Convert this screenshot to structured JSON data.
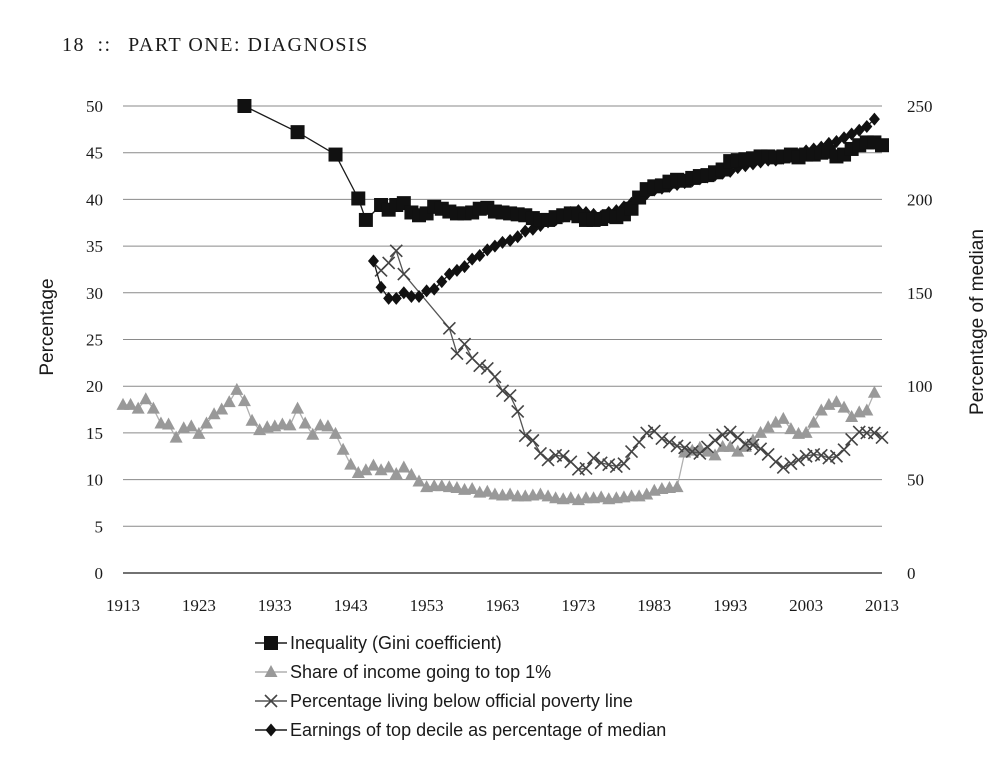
{
  "page_header": {
    "page_number": "18",
    "separator": "::",
    "section": "PART ONE: DIAGNOSIS"
  },
  "chart_data": {
    "type": "line",
    "title": "",
    "xlabel": "",
    "ylabel": "Percentage",
    "ylabel_right": "Percentage of median",
    "xlim": [
      1913,
      2013
    ],
    "ylim": [
      0,
      50
    ],
    "ylim_right": [
      0,
      250
    ],
    "x_ticks": [
      "1913",
      "1923",
      "1933",
      "1943",
      "1953",
      "1963",
      "1973",
      "1983",
      "1993",
      "2003",
      "2013"
    ],
    "y_ticks": [
      "0",
      "5",
      "10",
      "15",
      "20",
      "25",
      "30",
      "35",
      "40",
      "45",
      "50"
    ],
    "y_ticks_right": [
      "0",
      "50",
      "100",
      "150",
      "200",
      "250"
    ],
    "grid": true,
    "legend_position": "bottom",
    "series": [
      {
        "name": "Inequality (Gini coefficient)",
        "axis": "left",
        "marker": "square",
        "color": "#111111",
        "points": [
          [
            1929,
            50
          ],
          [
            1936,
            47.2
          ],
          [
            1941,
            44.8
          ],
          [
            1944,
            40.1
          ],
          [
            1945,
            37.8
          ],
          [
            1947,
            39.4
          ],
          [
            1948,
            38.9
          ],
          [
            1949,
            39.4
          ],
          [
            1950,
            39.6
          ],
          [
            1951,
            38.6
          ],
          [
            1952,
            38.3
          ],
          [
            1953,
            38.5
          ],
          [
            1954,
            39.2
          ],
          [
            1955,
            39.0
          ],
          [
            1956,
            38.7
          ],
          [
            1957,
            38.5
          ],
          [
            1958,
            38.5
          ],
          [
            1959,
            38.6
          ],
          [
            1960,
            39.0
          ],
          [
            1961,
            39.1
          ],
          [
            1962,
            38.7
          ],
          [
            1963,
            38.6
          ],
          [
            1964,
            38.5
          ],
          [
            1965,
            38.4
          ],
          [
            1966,
            38.3
          ],
          [
            1967,
            38.0
          ],
          [
            1968,
            37.8
          ],
          [
            1969,
            37.8
          ],
          [
            1970,
            38.1
          ],
          [
            1971,
            38.3
          ],
          [
            1972,
            38.5
          ],
          [
            1973,
            38.2
          ],
          [
            1974,
            37.8
          ],
          [
            1975,
            37.8
          ],
          [
            1976,
            37.9
          ],
          [
            1977,
            38.2
          ],
          [
            1978,
            38.1
          ],
          [
            1979,
            38.4
          ],
          [
            1980,
            39.0
          ],
          [
            1981,
            40.2
          ],
          [
            1982,
            41.1
          ],
          [
            1983,
            41.4
          ],
          [
            1984,
            41.5
          ],
          [
            1985,
            41.9
          ],
          [
            1986,
            42.1
          ],
          [
            1987,
            42.0
          ],
          [
            1988,
            42.3
          ],
          [
            1989,
            42.5
          ],
          [
            1990,
            42.6
          ],
          [
            1991,
            42.9
          ],
          [
            1992,
            43.2
          ],
          [
            1993,
            44.1
          ],
          [
            1994,
            44.2
          ],
          [
            1995,
            44.3
          ],
          [
            1996,
            44.4
          ],
          [
            1997,
            44.6
          ],
          [
            1998,
            44.6
          ],
          [
            1999,
            44.5
          ],
          [
            2000,
            44.6
          ],
          [
            2001,
            44.8
          ],
          [
            2002,
            44.5
          ],
          [
            2003,
            44.8
          ],
          [
            2004,
            44.8
          ],
          [
            2005,
            45.0
          ],
          [
            2006,
            45.1
          ],
          [
            2007,
            44.6
          ],
          [
            2008,
            44.8
          ],
          [
            2009,
            45.4
          ],
          [
            2010,
            45.8
          ],
          [
            2011,
            46.1
          ],
          [
            2012,
            46.1
          ],
          [
            2013,
            45.8
          ]
        ]
      },
      {
        "name": "Share of income going to top 1%",
        "axis": "left",
        "marker": "triangle",
        "color": "#999999",
        "points": [
          [
            1913,
            18.0
          ],
          [
            1914,
            18.0
          ],
          [
            1915,
            17.6
          ],
          [
            1916,
            18.6
          ],
          [
            1917,
            17.6
          ],
          [
            1918,
            16.0
          ],
          [
            1919,
            15.9
          ],
          [
            1920,
            14.5
          ],
          [
            1921,
            15.5
          ],
          [
            1922,
            15.7
          ],
          [
            1923,
            14.9
          ],
          [
            1924,
            16.0
          ],
          [
            1925,
            17.0
          ],
          [
            1926,
            17.5
          ],
          [
            1927,
            18.3
          ],
          [
            1928,
            19.6
          ],
          [
            1929,
            18.4
          ],
          [
            1930,
            16.3
          ],
          [
            1931,
            15.3
          ],
          [
            1932,
            15.6
          ],
          [
            1933,
            15.7
          ],
          [
            1934,
            15.9
          ],
          [
            1935,
            15.8
          ],
          [
            1936,
            17.6
          ],
          [
            1937,
            16.0
          ],
          [
            1938,
            14.8
          ],
          [
            1939,
            15.8
          ],
          [
            1940,
            15.7
          ],
          [
            1941,
            14.9
          ],
          [
            1942,
            13.2
          ],
          [
            1943,
            11.6
          ],
          [
            1944,
            10.7
          ],
          [
            1945,
            11.0
          ],
          [
            1946,
            11.5
          ],
          [
            1947,
            11.0
          ],
          [
            1948,
            11.3
          ],
          [
            1949,
            10.6
          ],
          [
            1950,
            11.3
          ],
          [
            1951,
            10.5
          ],
          [
            1952,
            9.8
          ],
          [
            1953,
            9.2
          ],
          [
            1954,
            9.3
          ],
          [
            1955,
            9.3
          ],
          [
            1956,
            9.2
          ],
          [
            1957,
            9.1
          ],
          [
            1958,
            8.9
          ],
          [
            1959,
            9.0
          ],
          [
            1960,
            8.6
          ],
          [
            1961,
            8.7
          ],
          [
            1962,
            8.4
          ],
          [
            1963,
            8.3
          ],
          [
            1964,
            8.4
          ],
          [
            1965,
            8.2
          ],
          [
            1966,
            8.2
          ],
          [
            1967,
            8.3
          ],
          [
            1968,
            8.4
          ],
          [
            1969,
            8.2
          ],
          [
            1970,
            8.0
          ],
          [
            1971,
            7.9
          ],
          [
            1972,
            8.0
          ],
          [
            1973,
            7.8
          ],
          [
            1974,
            8.0
          ],
          [
            1975,
            8.0
          ],
          [
            1976,
            8.1
          ],
          [
            1977,
            7.9
          ],
          [
            1978,
            8.0
          ],
          [
            1979,
            8.1
          ],
          [
            1980,
            8.2
          ],
          [
            1981,
            8.2
          ],
          [
            1982,
            8.4
          ],
          [
            1983,
            8.8
          ],
          [
            1984,
            9.0
          ],
          [
            1985,
            9.1
          ],
          [
            1986,
            9.2
          ],
          [
            1987,
            12.9
          ],
          [
            1988,
            13.1
          ],
          [
            1989,
            13.4
          ],
          [
            1990,
            13.0
          ],
          [
            1991,
            12.6
          ],
          [
            1992,
            13.5
          ],
          [
            1993,
            13.5
          ],
          [
            1994,
            13.0
          ],
          [
            1995,
            13.5
          ],
          [
            1996,
            14.2
          ],
          [
            1997,
            15.0
          ],
          [
            1998,
            15.6
          ],
          [
            1999,
            16.1
          ],
          [
            2000,
            16.5
          ],
          [
            2001,
            15.4
          ],
          [
            2002,
            14.9
          ],
          [
            2003,
            15.0
          ],
          [
            2004,
            16.1
          ],
          [
            2005,
            17.4
          ],
          [
            2006,
            18.0
          ],
          [
            2007,
            18.3
          ],
          [
            2008,
            17.7
          ],
          [
            2009,
            16.7
          ],
          [
            2010,
            17.2
          ],
          [
            2011,
            17.4
          ],
          [
            2012,
            19.3
          ]
        ]
      },
      {
        "name": "Percentage living below official poverty line",
        "axis": "left",
        "marker": "x",
        "color": "#444444",
        "points": [
          [
            1947,
            32.4
          ],
          [
            1948,
            33.2
          ],
          [
            1949,
            34.5
          ],
          [
            1950,
            32.0
          ],
          [
            1956,
            26.2
          ],
          [
            1957,
            23.5
          ],
          [
            1958,
            24.5
          ],
          [
            1959,
            23.0
          ],
          [
            1960,
            22.2
          ],
          [
            1961,
            21.9
          ],
          [
            1962,
            21.0
          ],
          [
            1963,
            19.5
          ],
          [
            1964,
            19.0
          ],
          [
            1965,
            17.3
          ],
          [
            1966,
            14.7
          ],
          [
            1967,
            14.2
          ],
          [
            1968,
            12.8
          ],
          [
            1969,
            12.1
          ],
          [
            1970,
            12.6
          ],
          [
            1971,
            12.5
          ],
          [
            1972,
            11.9
          ],
          [
            1973,
            11.1
          ],
          [
            1974,
            11.2
          ],
          [
            1975,
            12.3
          ],
          [
            1976,
            11.8
          ],
          [
            1977,
            11.6
          ],
          [
            1978,
            11.4
          ],
          [
            1979,
            11.7
          ],
          [
            1980,
            13.0
          ],
          [
            1981,
            14.0
          ],
          [
            1982,
            15.0
          ],
          [
            1983,
            15.2
          ],
          [
            1984,
            14.4
          ],
          [
            1985,
            14.0
          ],
          [
            1986,
            13.6
          ],
          [
            1987,
            13.4
          ],
          [
            1988,
            13.0
          ],
          [
            1989,
            12.8
          ],
          [
            1990,
            13.5
          ],
          [
            1991,
            14.2
          ],
          [
            1992,
            14.8
          ],
          [
            1993,
            15.1
          ],
          [
            1994,
            14.5
          ],
          [
            1995,
            13.8
          ],
          [
            1996,
            13.7
          ],
          [
            1997,
            13.3
          ],
          [
            1998,
            12.7
          ],
          [
            1999,
            11.9
          ],
          [
            2000,
            11.3
          ],
          [
            2001,
            11.7
          ],
          [
            2002,
            12.1
          ],
          [
            2003,
            12.5
          ],
          [
            2004,
            12.7
          ],
          [
            2005,
            12.6
          ],
          [
            2006,
            12.3
          ],
          [
            2007,
            12.5
          ],
          [
            2008,
            13.2
          ],
          [
            2009,
            14.3
          ],
          [
            2010,
            15.1
          ],
          [
            2011,
            15.0
          ],
          [
            2012,
            15.0
          ],
          [
            2013,
            14.5
          ]
        ]
      },
      {
        "name": "Earnings of top decile as percentage of median",
        "axis": "right",
        "marker": "diamond",
        "color": "#111111",
        "points": [
          [
            1946,
            167
          ],
          [
            1947,
            153
          ],
          [
            1948,
            147
          ],
          [
            1949,
            147
          ],
          [
            1950,
            150
          ],
          [
            1951,
            148
          ],
          [
            1952,
            148
          ],
          [
            1953,
            151
          ],
          [
            1954,
            152
          ],
          [
            1955,
            156
          ],
          [
            1956,
            160
          ],
          [
            1957,
            162
          ],
          [
            1958,
            164
          ],
          [
            1959,
            168
          ],
          [
            1960,
            170
          ],
          [
            1961,
            173
          ],
          [
            1962,
            175
          ],
          [
            1963,
            177
          ],
          [
            1964,
            178
          ],
          [
            1965,
            180
          ],
          [
            1966,
            183
          ],
          [
            1967,
            184
          ],
          [
            1968,
            186
          ],
          [
            1969,
            188
          ],
          [
            1970,
            189
          ],
          [
            1971,
            191
          ],
          [
            1972,
            193
          ],
          [
            1973,
            194
          ],
          [
            1974,
            193
          ],
          [
            1975,
            192
          ],
          [
            1976,
            191
          ],
          [
            1977,
            193
          ],
          [
            1978,
            194
          ],
          [
            1979,
            196
          ],
          [
            1980,
            198
          ],
          [
            1981,
            201
          ],
          [
            1982,
            203
          ],
          [
            1983,
            205
          ],
          [
            1984,
            206
          ],
          [
            1985,
            207
          ],
          [
            1986,
            208
          ],
          [
            1987,
            209
          ],
          [
            1988,
            210
          ],
          [
            1989,
            211
          ],
          [
            1990,
            212
          ],
          [
            1991,
            213
          ],
          [
            1992,
            214
          ],
          [
            1993,
            215
          ],
          [
            1994,
            217
          ],
          [
            1995,
            218
          ],
          [
            1996,
            219
          ],
          [
            1997,
            220
          ],
          [
            1998,
            221
          ],
          [
            1999,
            221
          ],
          [
            2000,
            222
          ],
          [
            2001,
            223
          ],
          [
            2002,
            224
          ],
          [
            2003,
            226
          ],
          [
            2004,
            227
          ],
          [
            2005,
            228
          ],
          [
            2006,
            230
          ],
          [
            2007,
            231
          ],
          [
            2008,
            233
          ],
          [
            2009,
            235
          ],
          [
            2010,
            237
          ],
          [
            2011,
            239
          ],
          [
            2012,
            243
          ]
        ]
      }
    ]
  }
}
